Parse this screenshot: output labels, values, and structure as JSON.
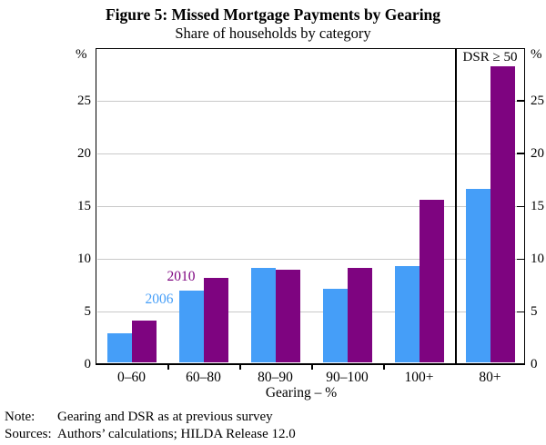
{
  "header": {
    "title": "Figure 5: Missed Mortgage Payments by Gearing",
    "subtitle": "Share of households by category"
  },
  "chart_data": {
    "type": "bar",
    "title": "Figure 5: Missed Mortgage Payments by Gearing",
    "subtitle": "Share of households by category",
    "unit": "%",
    "xlabel": "Gearing – %",
    "ylim": [
      0,
      30
    ],
    "yticks": [
      0,
      5,
      10,
      15,
      20,
      25
    ],
    "grid": true,
    "legend_position": "inline-labels",
    "categories": [
      "0–60",
      "60–80",
      "80–90",
      "90–100",
      "100+",
      "80+"
    ],
    "series": [
      {
        "name": "2006",
        "color": "#459EF8",
        "values": [
          3.0,
          7.0,
          9.2,
          7.2,
          9.3,
          16.7
        ]
      },
      {
        "name": "2010",
        "color": "#7E0480",
        "values": [
          4.2,
          8.2,
          9.0,
          9.2,
          15.6,
          28.3
        ]
      }
    ],
    "right_panel_label": "DSR ≥ 50",
    "right_panel_categories": [
      "80+"
    ],
    "panel_divider_after_category": "100+"
  },
  "colors": {
    "series_2006": "#459EF8",
    "series_2010": "#7E0480",
    "gridline": "#c9c9c9",
    "axis": "#000000"
  },
  "footer": {
    "note_label": "Note:",
    "note_text": "Gearing and DSR as at previous survey",
    "sources_label": "Sources:",
    "sources_text": "Authors’ calculations; HILDA Release 12.0"
  }
}
